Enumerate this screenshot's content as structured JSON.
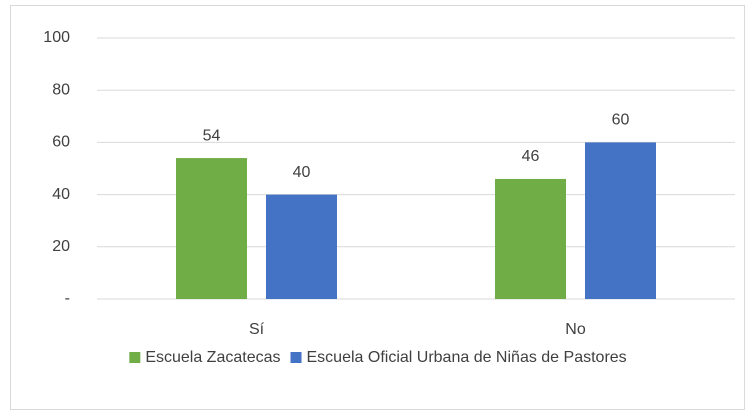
{
  "chart_data": {
    "type": "bar",
    "categories": [
      "Sí",
      "No"
    ],
    "series": [
      {
        "name": "Escuela Zacatecas",
        "color": "#70ad47",
        "values": [
          54,
          46
        ]
      },
      {
        "name": "Escuela Oficial Urbana de Niñas de Pastores",
        "color": "#4472c4",
        "values": [
          40,
          60
        ]
      }
    ],
    "ylim": [
      0,
      100
    ],
    "yticks": [
      {
        "value": 0,
        "label": "-"
      },
      20,
      40,
      60,
      80,
      100
    ],
    "grid": true,
    "legend": "bottom"
  }
}
